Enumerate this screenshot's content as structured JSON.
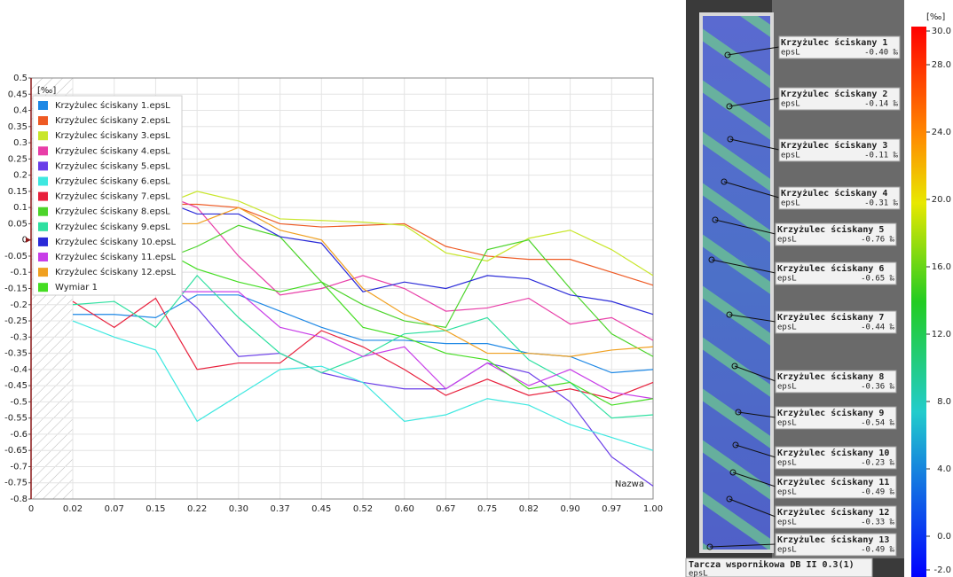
{
  "chart_data": {
    "type": "line",
    "y_unit": "[‰]",
    "corner_label": "Nazwa",
    "categories": [
      "0",
      "0.02",
      "0.07",
      "0.15",
      "0.22",
      "0.30",
      "0.37",
      "0.45",
      "0.52",
      "0.60",
      "0.67",
      "0.75",
      "0.82",
      "0.90",
      "0.97",
      "1.00"
    ],
    "ylim": [
      -0.8,
      0.5
    ],
    "yticks": [
      0.5,
      0.45,
      0.4,
      0.35,
      0.3,
      0.25,
      0.2,
      0.15,
      0.1,
      0.05,
      0,
      -0.05,
      -0.1,
      -0.15,
      -0.2,
      -0.25,
      -0.3,
      -0.35,
      -0.4,
      -0.45,
      -0.5,
      -0.55,
      -0.6,
      -0.65,
      -0.7,
      -0.75,
      -0.8
    ],
    "grid": true,
    "legend": "top-left",
    "series": [
      {
        "name": "Krzyżulec ściskany 1.epsL",
        "color": "#1e88e5",
        "values": [
          null,
          -0.23,
          -0.23,
          -0.24,
          -0.17,
          -0.17,
          -0.22,
          -0.27,
          -0.31,
          -0.31,
          -0.32,
          -0.32,
          -0.35,
          -0.36,
          -0.41,
          -0.4
        ]
      },
      {
        "name": "Krzyżulec ściskany 2.epsL",
        "color": "#ee5a24",
        "values": [
          null,
          0.12,
          0.1,
          0.11,
          0.11,
          0.1,
          0.05,
          0.04,
          0.045,
          0.05,
          -0.02,
          -0.05,
          -0.06,
          -0.06,
          -0.1,
          -0.14
        ]
      },
      {
        "name": "Krzyżulec ściskany 3.epsL",
        "color": "#c8e62a",
        "values": [
          null,
          0.11,
          0.12,
          0.1,
          0.15,
          0.12,
          0.065,
          0.06,
          0.055,
          0.045,
          -0.04,
          -0.065,
          0.005,
          0.03,
          -0.03,
          -0.11
        ]
      },
      {
        "name": "Krzyżulec ściskany 4.epsL",
        "color": "#e83ea8",
        "values": [
          null,
          0.1,
          0.13,
          0.15,
          0.1,
          -0.05,
          -0.17,
          -0.15,
          -0.11,
          -0.15,
          -0.22,
          -0.21,
          -0.18,
          -0.26,
          -0.24,
          -0.31
        ]
      },
      {
        "name": "Krzyżulec ściskany 5.epsL",
        "color": "#6a3de8",
        "values": [
          null,
          -0.15,
          -0.13,
          -0.1,
          -0.21,
          -0.36,
          -0.35,
          -0.41,
          -0.44,
          -0.46,
          -0.46,
          -0.38,
          -0.41,
          -0.5,
          -0.67,
          -0.76
        ]
      },
      {
        "name": "Krzyżulec ściskany 6.epsL",
        "color": "#3ee8e0",
        "values": [
          null,
          -0.25,
          -0.3,
          -0.34,
          -0.56,
          -0.48,
          -0.4,
          -0.39,
          -0.44,
          -0.56,
          -0.54,
          -0.49,
          -0.51,
          -0.57,
          -0.61,
          -0.65
        ]
      },
      {
        "name": "Krzyżulec ściskany 7.epsL",
        "color": "#e8203c",
        "values": [
          null,
          -0.19,
          -0.27,
          -0.18,
          -0.4,
          -0.38,
          -0.38,
          -0.28,
          -0.33,
          -0.4,
          -0.48,
          -0.43,
          -0.48,
          -0.46,
          -0.49,
          -0.44
        ]
      },
      {
        "name": "Krzyżulec ściskany 8.epsL",
        "color": "#4cd42a",
        "values": [
          null,
          -0.02,
          -0.05,
          -0.07,
          -0.02,
          0.045,
          0.01,
          -0.13,
          -0.2,
          -0.25,
          -0.27,
          -0.03,
          0.0,
          -0.15,
          -0.29,
          -0.36
        ]
      },
      {
        "name": "Krzyżulec ściskany 9.epsL",
        "color": "#2ee0a0",
        "values": [
          null,
          -0.2,
          -0.19,
          -0.27,
          -0.11,
          -0.24,
          -0.35,
          -0.41,
          -0.36,
          -0.29,
          -0.28,
          -0.24,
          -0.37,
          -0.44,
          -0.55,
          -0.54
        ]
      },
      {
        "name": "Krzyżulec ściskany 10.epsL",
        "color": "#2a2ad8",
        "values": [
          null,
          0.1,
          0.11,
          0.13,
          0.08,
          0.08,
          0.01,
          -0.01,
          -0.16,
          -0.13,
          -0.15,
          -0.11,
          -0.12,
          -0.17,
          -0.19,
          -0.23
        ]
      },
      {
        "name": "Krzyżulec ściskany 11.epsL",
        "color": "#c83ee8",
        "values": [
          null,
          -0.15,
          -0.15,
          -0.16,
          -0.16,
          -0.16,
          -0.27,
          -0.3,
          -0.36,
          -0.33,
          -0.46,
          -0.38,
          -0.45,
          -0.4,
          -0.47,
          -0.49
        ]
      },
      {
        "name": "Krzyżulec ściskany 12.epsL",
        "color": "#f0a020",
        "values": [
          null,
          0.07,
          0.06,
          0.05,
          0.05,
          0.1,
          0.03,
          0.0,
          -0.15,
          -0.23,
          -0.28,
          -0.35,
          -0.35,
          -0.36,
          -0.34,
          -0.33
        ]
      },
      {
        "name": "Wymiar 1",
        "color": "#44dd22",
        "values": [
          null,
          -0.06,
          -0.05,
          -0.02,
          -0.09,
          -0.13,
          -0.16,
          -0.13,
          -0.27,
          -0.3,
          -0.35,
          -0.37,
          -0.46,
          -0.44,
          -0.51,
          -0.49
        ]
      }
    ]
  },
  "image_panel": {
    "caption": "Tarcza wspornikowa  DB II 0.3(1)",
    "caption_sub": "epsL",
    "labels": [
      {
        "title": "Krzyżulec ściskany 1",
        "name": "epsL",
        "value": "-0.40 ‰"
      },
      {
        "title": "Krzyżulec ściskany 2",
        "name": "epsL",
        "value": "-0.14 ‰"
      },
      {
        "title": "Krzyżulec ściskany 3",
        "name": "epsL",
        "value": "-0.11 ‰"
      },
      {
        "title": "Krzyżulec ściskany 4",
        "name": "epsL",
        "value": "-0.31 ‰"
      },
      {
        "title": "Krzyżulec ściskany 5",
        "name": "epsL",
        "value": "-0.76 ‰"
      },
      {
        "title": "Krzyżulec ściskany 6",
        "name": "epsL",
        "value": "-0.65 ‰"
      },
      {
        "title": "Krzyżulec ściskany 7",
        "name": "epsL",
        "value": "-0.44 ‰"
      },
      {
        "title": "Krzyżulec ściskany 8",
        "name": "epsL",
        "value": "-0.36 ‰"
      },
      {
        "title": "Krzyżulec ściskany 9",
        "name": "epsL",
        "value": "-0.54 ‰"
      },
      {
        "title": "Krzyżulec ściskany 10",
        "name": "epsL",
        "value": "-0.23 ‰"
      },
      {
        "title": "Krzyżulec ściskany 11",
        "name": "epsL",
        "value": "-0.49 ‰"
      },
      {
        "title": "Krzyżulec ściskany 12",
        "name": "epsL",
        "value": "-0.33 ‰"
      },
      {
        "title": "Krzyżulec ściskany 13",
        "name": "epsL",
        "value": "-0.49 ‰"
      }
    ],
    "colorbar": {
      "title": "[‰]",
      "lim": [
        -2,
        30
      ],
      "ticks": [
        {
          "value": 30,
          "label": "30.0"
        },
        {
          "value": 28,
          "label": "28.0"
        },
        {
          "value": 24,
          "label": "24.0"
        },
        {
          "value": 20,
          "label": "20.0"
        },
        {
          "value": 16,
          "label": "16.0"
        },
        {
          "value": 12,
          "label": "12.0"
        },
        {
          "value": 8,
          "label": "8.0"
        },
        {
          "value": 4,
          "label": "4.0"
        },
        {
          "value": 0,
          "label": "0.0"
        },
        {
          "value": -2,
          "label": "-2.0"
        }
      ]
    }
  }
}
